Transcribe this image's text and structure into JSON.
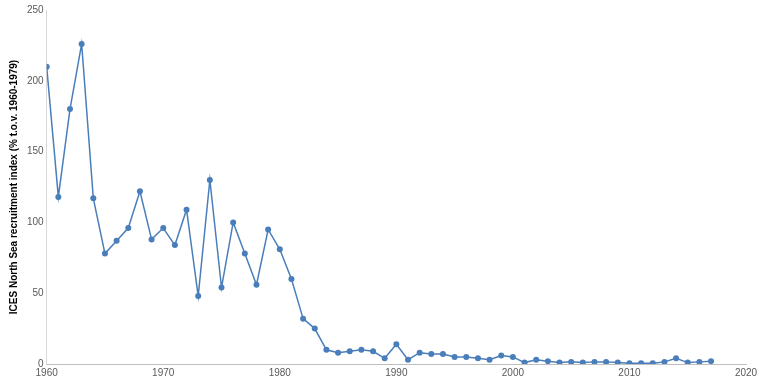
{
  "chart_data": {
    "type": "line",
    "y_label": "ICES North Sea recruitment index (% t.o.v. 1960-1979)",
    "x": [
      1960,
      1961,
      1962,
      1963,
      1964,
      1965,
      1966,
      1967,
      1968,
      1969,
      1970,
      1971,
      1972,
      1973,
      1974,
      1975,
      1976,
      1977,
      1978,
      1979,
      1980,
      1981,
      1982,
      1983,
      1984,
      1985,
      1986,
      1987,
      1988,
      1989,
      1990,
      1991,
      1992,
      1993,
      1994,
      1995,
      1996,
      1997,
      1998,
      1999,
      2000,
      2001,
      2002,
      2003,
      2004,
      2005,
      2006,
      2007,
      2008,
      2009,
      2010,
      2011,
      2012,
      2013,
      2014,
      2015,
      2016,
      2017
    ],
    "values": [
      210,
      118,
      180,
      226,
      117,
      78,
      87,
      96,
      122,
      88,
      96,
      84,
      109,
      48,
      130,
      54,
      100,
      78,
      56,
      95,
      81,
      60,
      32,
      25,
      10,
      8,
      9,
      10,
      9,
      4,
      14,
      3,
      8,
      7,
      7,
      5,
      5,
      4,
      3,
      6,
      5,
      1,
      3,
      2,
      1,
      1.5,
      1,
      1.5,
      1.5,
      1,
      0.5,
      0.5,
      0.5,
      1.5,
      4,
      1,
      1.5,
      2
    ],
    "color": "#4a7ebb",
    "marker": "circle",
    "line_style": "solid",
    "xlim": [
      1960,
      2020
    ],
    "xticks": [
      1960,
      1970,
      1980,
      1990,
      2000,
      2010,
      2020
    ],
    "ylim": [
      0,
      250
    ],
    "yticks": [
      0,
      50,
      100,
      150,
      200,
      250
    ],
    "grid": false
  }
}
